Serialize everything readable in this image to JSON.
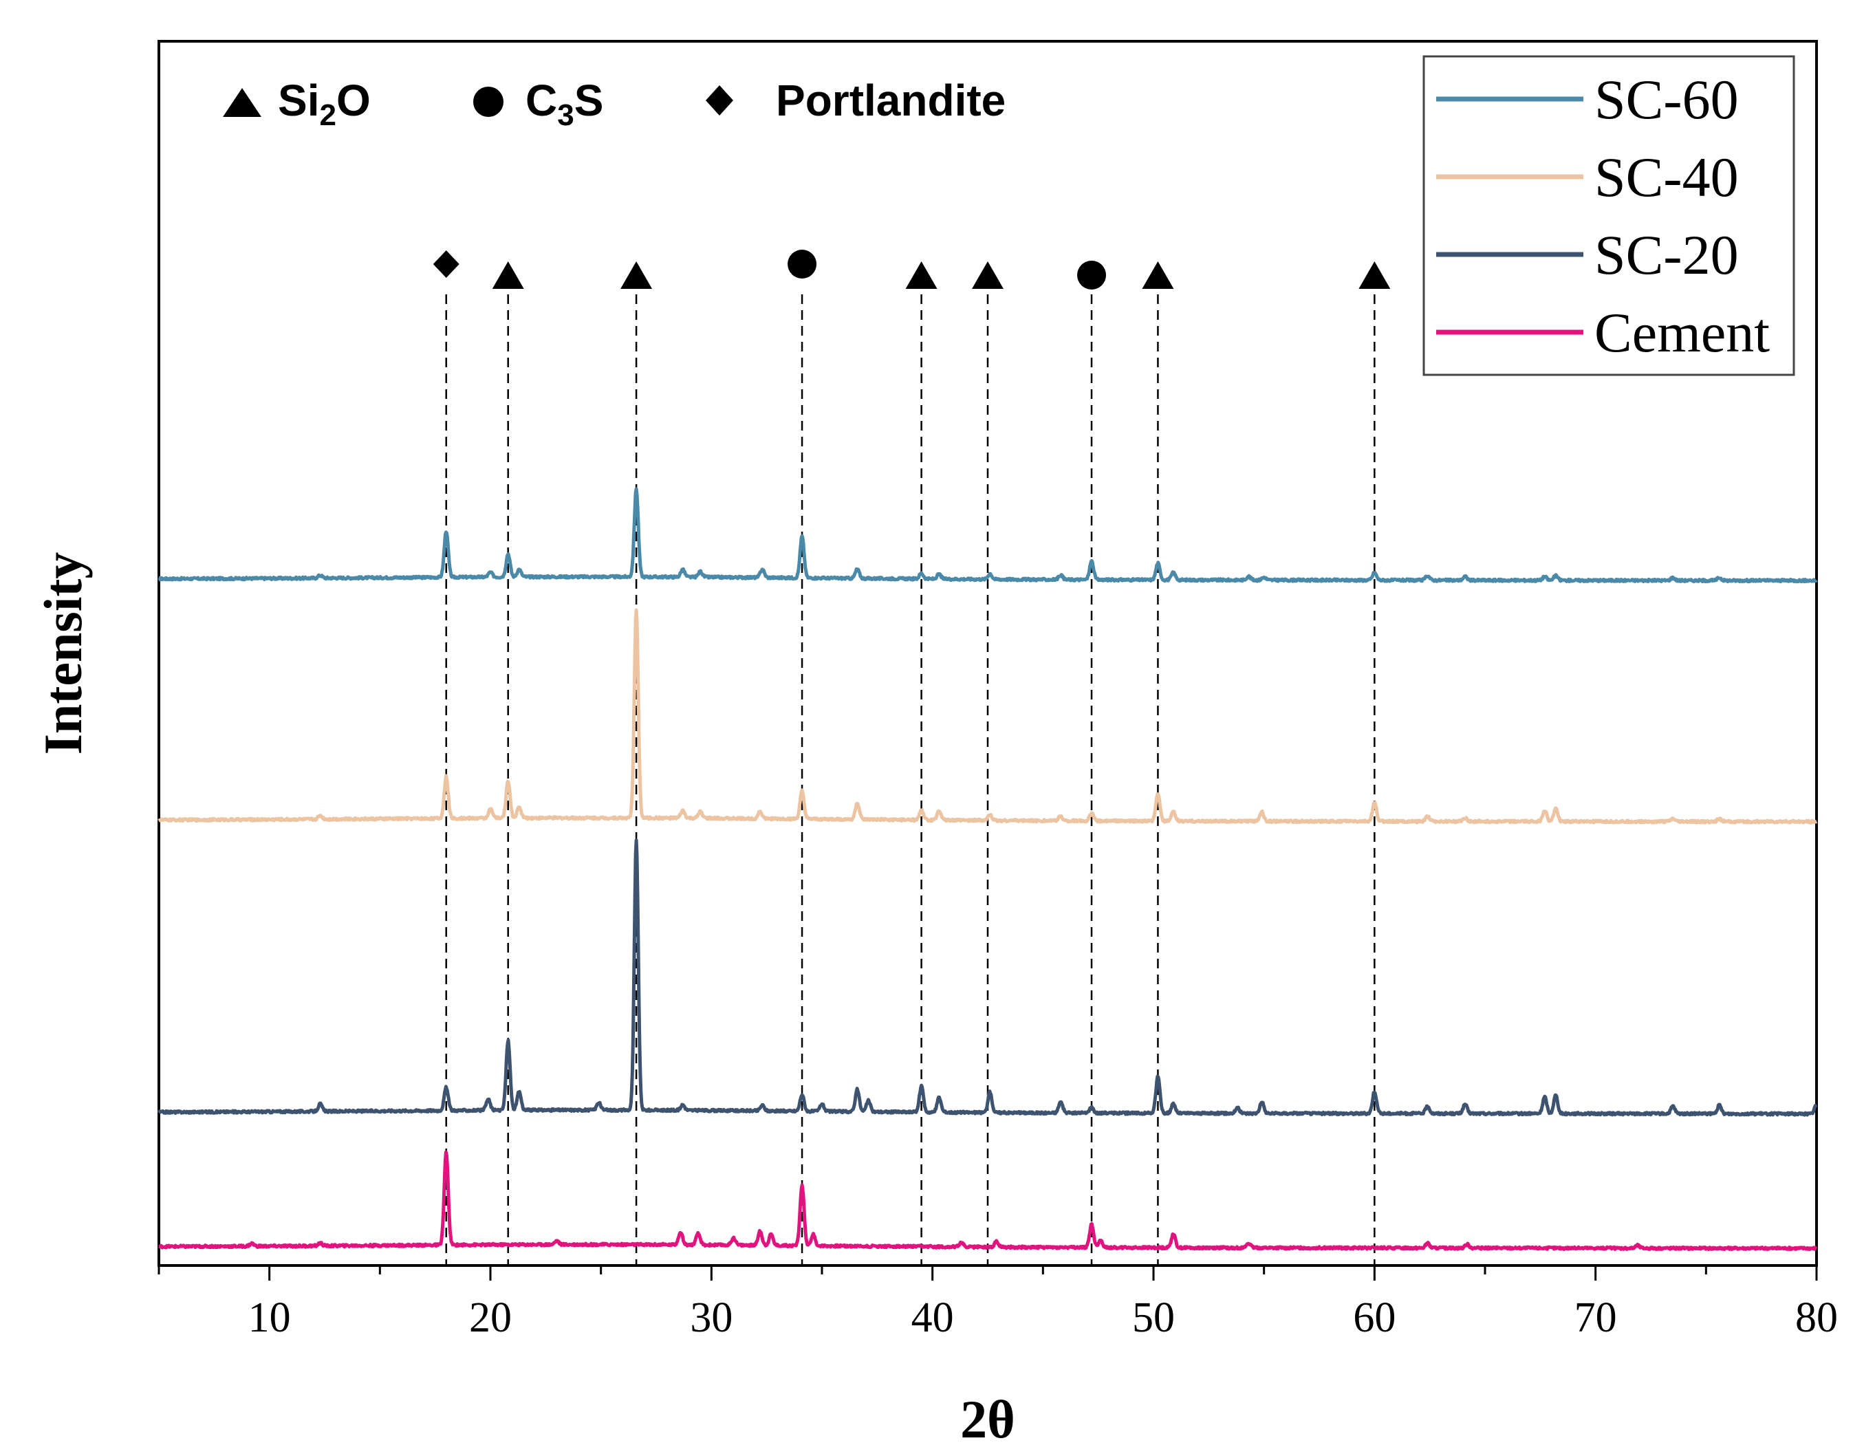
{
  "chart_data": {
    "type": "line",
    "title": "",
    "xlabel": "2θ",
    "ylabel": "Intensity",
    "xlim": [
      5,
      80
    ],
    "ylim": [
      0,
      1320
    ],
    "x_ticks": [
      10,
      20,
      30,
      40,
      50,
      60,
      70,
      80
    ],
    "x_tick_labels": [
      "10",
      "20",
      "30",
      "40",
      "50",
      "60",
      "70",
      "80"
    ],
    "y_ticks_shown": false,
    "grid": false,
    "legend_position": "top-right",
    "legend": [
      {
        "label": "SC-60",
        "color": "#4a89a8"
      },
      {
        "label": "SC-40",
        "color": "#edc4a2"
      },
      {
        "label": "SC-20",
        "color": "#3d5370"
      },
      {
        "label": "Cement",
        "color": "#e0137f"
      }
    ],
    "phase_key": [
      {
        "symbol": "triangle",
        "label": "Si",
        "subscript": "2",
        "suffix": "O"
      },
      {
        "symbol": "circle",
        "label": "C",
        "subscript": "3",
        "suffix": "S"
      },
      {
        "symbol": "diamond",
        "label": "Portlandite",
        "subscript": "",
        "suffix": ""
      }
    ],
    "phase_markers": [
      {
        "x": 18.0,
        "symbol": "diamond",
        "phase": "Portlandite"
      },
      {
        "x": 20.8,
        "symbol": "triangle",
        "phase": "Si2O"
      },
      {
        "x": 26.6,
        "symbol": "triangle",
        "phase": "Si2O"
      },
      {
        "x": 34.1,
        "symbol": "circle",
        "phase": "C3S"
      },
      {
        "x": 39.5,
        "symbol": "triangle",
        "phase": "Si2O"
      },
      {
        "x": 42.5,
        "symbol": "triangle",
        "phase": "Si2O"
      },
      {
        "x": 47.2,
        "symbol": "circle",
        "phase": "C3S"
      },
      {
        "x": 50.2,
        "symbol": "triangle",
        "phase": "Si2O"
      },
      {
        "x": 60.0,
        "symbol": "triangle",
        "phase": "Si2O"
      }
    ],
    "series": [
      {
        "name": "SC-60",
        "color": "#4a89a8",
        "baseline": 740,
        "peaks": [
          [
            12.3,
            3
          ],
          [
            18.0,
            50
          ],
          [
            20.0,
            5
          ],
          [
            20.8,
            25
          ],
          [
            21.3,
            8
          ],
          [
            26.6,
            95
          ],
          [
            28.7,
            8
          ],
          [
            29.5,
            6
          ],
          [
            32.3,
            9
          ],
          [
            34.1,
            45
          ],
          [
            36.6,
            10
          ],
          [
            39.5,
            6
          ],
          [
            40.3,
            5
          ],
          [
            42.6,
            6
          ],
          [
            45.8,
            5
          ],
          [
            47.2,
            20
          ],
          [
            50.2,
            18
          ],
          [
            50.9,
            8
          ],
          [
            54.3,
            4
          ],
          [
            55.0,
            3
          ],
          [
            60.0,
            8
          ],
          [
            62.4,
            5
          ],
          [
            64.1,
            4
          ],
          [
            67.7,
            4
          ],
          [
            68.2,
            5
          ],
          [
            73.5,
            3
          ],
          [
            75.6,
            3
          ]
        ]
      },
      {
        "name": "SC-40",
        "color": "#edc4a2",
        "baseline": 480,
        "peaks": [
          [
            12.3,
            4
          ],
          [
            18.0,
            45
          ],
          [
            20.0,
            10
          ],
          [
            20.8,
            40
          ],
          [
            21.3,
            12
          ],
          [
            26.6,
            225
          ],
          [
            28.7,
            8
          ],
          [
            29.5,
            7
          ],
          [
            32.2,
            8
          ],
          [
            34.1,
            30
          ],
          [
            36.6,
            18
          ],
          [
            39.5,
            10
          ],
          [
            40.3,
            10
          ],
          [
            42.6,
            6
          ],
          [
            45.8,
            5
          ],
          [
            47.2,
            8
          ],
          [
            50.2,
            30
          ],
          [
            50.9,
            10
          ],
          [
            54.9,
            10
          ],
          [
            60.0,
            20
          ],
          [
            62.4,
            5
          ],
          [
            64.1,
            4
          ],
          [
            67.7,
            12
          ],
          [
            68.2,
            14
          ],
          [
            73.5,
            3
          ],
          [
            75.6,
            3
          ]
        ]
      },
      {
        "name": "SC-20",
        "color": "#3d5370",
        "baseline": 165,
        "peaks": [
          [
            12.3,
            8
          ],
          [
            18.0,
            25
          ],
          [
            19.9,
            12
          ],
          [
            20.8,
            75
          ],
          [
            21.3,
            20
          ],
          [
            24.9,
            8
          ],
          [
            26.6,
            290
          ],
          [
            28.7,
            6
          ],
          [
            32.3,
            6
          ],
          [
            34.1,
            18
          ],
          [
            35.0,
            8
          ],
          [
            36.6,
            24
          ],
          [
            37.1,
            12
          ],
          [
            39.5,
            28
          ],
          [
            40.3,
            16
          ],
          [
            42.6,
            22
          ],
          [
            45.8,
            12
          ],
          [
            47.2,
            6
          ],
          [
            50.2,
            40
          ],
          [
            50.9,
            10
          ],
          [
            53.8,
            6
          ],
          [
            54.9,
            12
          ],
          [
            60.0,
            24
          ],
          [
            62.4,
            8
          ],
          [
            64.1,
            10
          ],
          [
            67.7,
            18
          ],
          [
            68.2,
            20
          ],
          [
            73.5,
            8
          ],
          [
            75.6,
            9
          ],
          [
            80.0,
            10
          ]
        ]
      },
      {
        "name": "Cement",
        "color": "#e0137f",
        "baseline": 20,
        "peaks": [
          [
            9.2,
            3
          ],
          [
            12.3,
            3
          ],
          [
            18.0,
            100
          ],
          [
            23.0,
            4
          ],
          [
            28.6,
            14
          ],
          [
            29.4,
            12
          ],
          [
            31.0,
            8
          ],
          [
            32.2,
            15
          ],
          [
            32.7,
            12
          ],
          [
            34.1,
            65
          ],
          [
            34.6,
            12
          ],
          [
            41.3,
            5
          ],
          [
            42.9,
            6
          ],
          [
            47.2,
            25
          ],
          [
            47.6,
            8
          ],
          [
            50.9,
            15
          ],
          [
            54.3,
            5
          ],
          [
            62.4,
            5
          ],
          [
            64.2,
            4
          ],
          [
            71.9,
            3
          ]
        ]
      }
    ]
  }
}
